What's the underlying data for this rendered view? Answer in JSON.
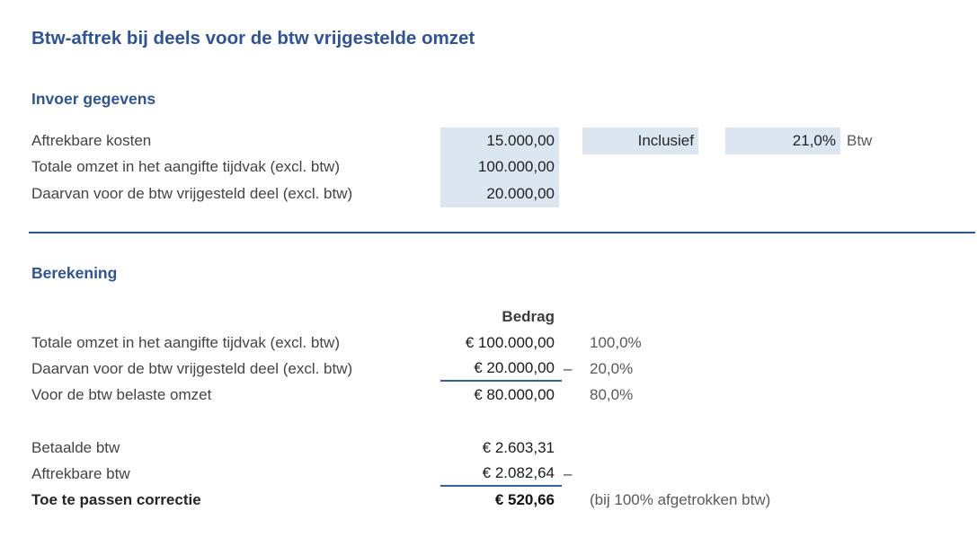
{
  "title": "Btw-aftrek bij deels voor de btw vrijgestelde omzet",
  "colors": {
    "heading_blue": "#2F5496",
    "input_cell_fill": "#DCE6F1",
    "divider_blue": "#2F5496",
    "underline_blue": "#35609C",
    "muted_gray": "#595959"
  },
  "invoer": {
    "heading": "Invoer gegevens",
    "rows": [
      {
        "label": "Aftrekbare kosten",
        "value": "15.000,00"
      },
      {
        "label": "Totale omzet in het aangifte tijdvak (excl. btw)",
        "value": "100.000,00"
      },
      {
        "label": "Daarvan voor de btw vrijgesteld deel (excl. btw)",
        "value": "20.000,00"
      }
    ],
    "mode": "Inclusief",
    "rate": "21,0%",
    "rate_suffix": "Btw"
  },
  "berekening": {
    "heading": "Berekening",
    "amount_header": "Bedrag",
    "omzet_rows": [
      {
        "label": "Totale omzet in het aangifte tijdvak (excl. btw)",
        "amount": "€ 100.000,00",
        "operator": "",
        "pct": "100,0%"
      },
      {
        "label": "Daarvan voor de btw vrijgesteld deel (excl. btw)",
        "amount": "€ 20.000,00",
        "operator": "–",
        "pct": "20,0%"
      },
      {
        "label": "Voor de btw belaste omzet",
        "amount": "€ 80.000,00",
        "operator": "",
        "pct": "80,0%"
      }
    ],
    "btw_rows": [
      {
        "label": "Betaalde btw",
        "amount": "€ 2.603,31",
        "operator": "",
        "note": ""
      },
      {
        "label": "Aftrekbare btw",
        "amount": "€ 2.082,64",
        "operator": "–",
        "note": ""
      },
      {
        "label": "Toe te passen correctie",
        "amount": "€ 520,66",
        "operator": "",
        "note": "(bij 100% afgetrokken btw)"
      }
    ]
  }
}
